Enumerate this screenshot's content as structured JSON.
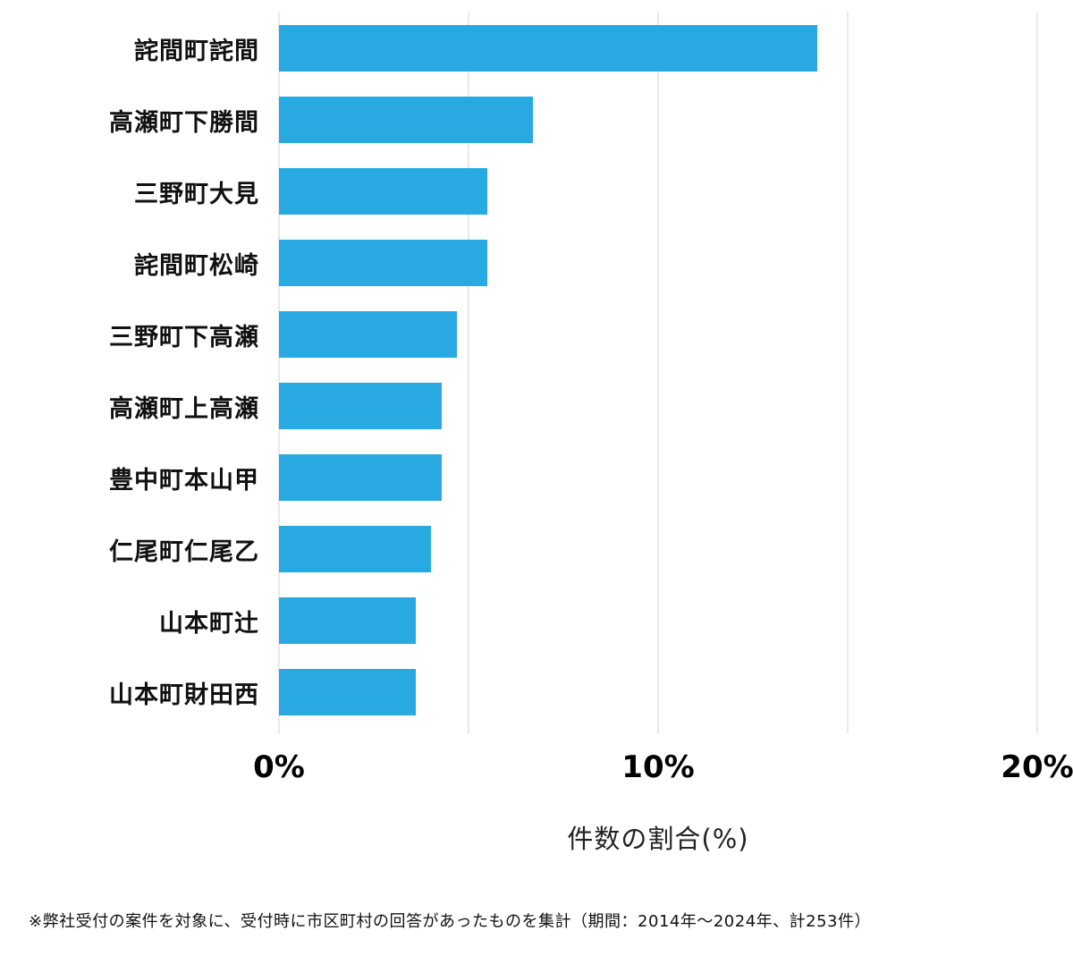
{
  "chart_data": {
    "type": "bar",
    "orientation": "horizontal",
    "title": "",
    "categories": [
      "詫間町詫間",
      "高瀬町下勝間",
      "三野町大見",
      "詫間町松崎",
      "三野町下高瀬",
      "高瀬町上高瀬",
      "豊中町本山甲",
      "仁尾町仁尾乙",
      "山本町辻",
      "山本町財田西"
    ],
    "values": [
      14.2,
      6.7,
      5.5,
      5.5,
      4.7,
      4.3,
      4.3,
      4.0,
      3.6,
      3.6
    ],
    "xlabel": "件数の割合(%)",
    "ylabel": "",
    "xlim": [
      0,
      20
    ],
    "x_tick_labels": [
      "0%",
      "10%",
      "20%"
    ],
    "x_tick_values": [
      0,
      10,
      20
    ],
    "gridline_values": [
      0,
      5,
      10,
      15,
      20
    ],
    "grid": "vertical",
    "legend": "none",
    "bar_color": "#29a9e1",
    "grid_color": "#e9e9e9"
  },
  "footnote": "※弊社受付の案件を対象に、受付時に市区町村の回答があったものを集計（期間：2014年〜2024年、計253件）"
}
